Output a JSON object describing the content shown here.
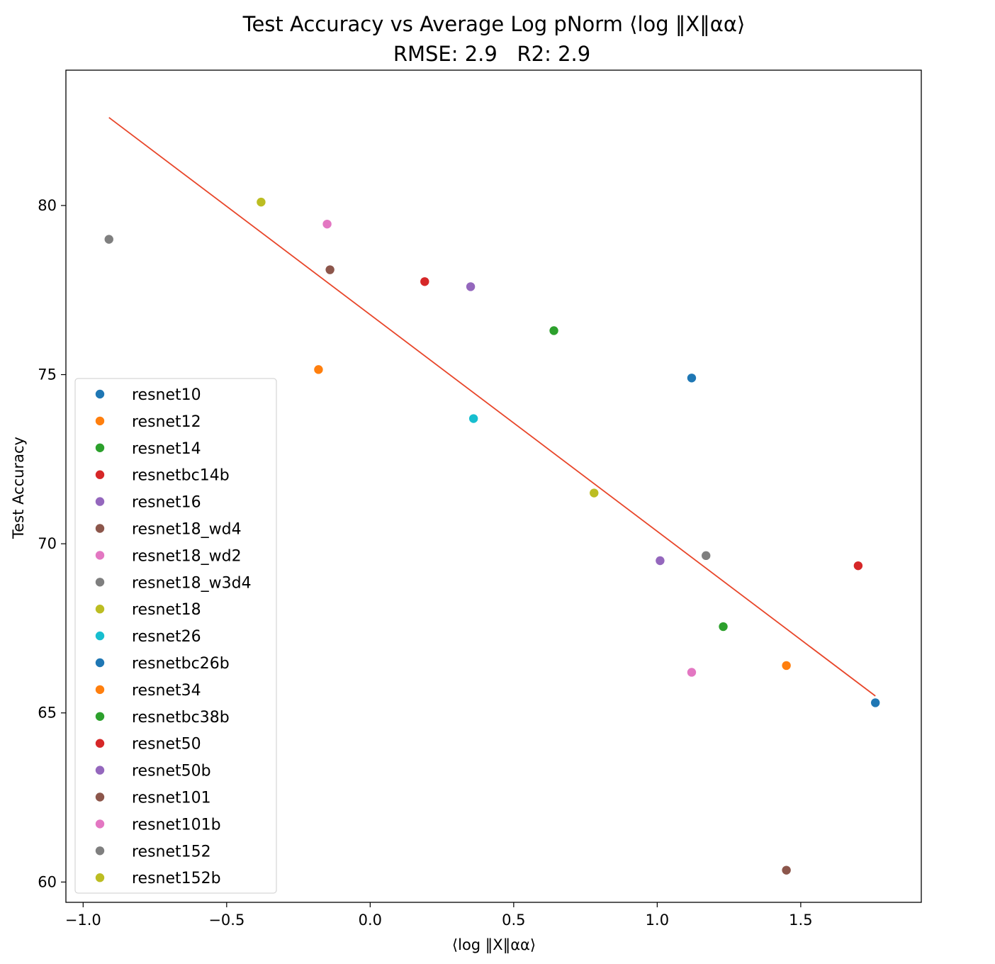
{
  "chart_data": {
    "type": "scatter",
    "title": "Test Accuracy vs Average Log pNorm",
    "title_math": "⟨log ‖X‖αα⟩",
    "subtitle": "RMSE: 2.9   R2: 2.9",
    "xlabel": "⟨log ‖X‖αα⟩",
    "ylabel": "Test Accuracy",
    "xlim": [
      -1.06,
      1.92
    ],
    "ylim": [
      59.4,
      84
    ],
    "xticks": [
      -1.0,
      -0.5,
      0.0,
      0.5,
      1.0,
      1.5
    ],
    "xtick_labels": [
      "−1.0",
      "−0.5",
      "0.0",
      "0.5",
      "1.0",
      "1.5"
    ],
    "yticks": [
      60,
      65,
      70,
      75,
      80
    ],
    "ytick_labels": [
      "60",
      "65",
      "70",
      "75",
      "80"
    ],
    "grid": false,
    "legend_position": "lower-left",
    "fit_line": {
      "color": "#e8462a",
      "x": [
        -0.91,
        1.76
      ],
      "y": [
        82.6,
        65.5
      ]
    },
    "series": [
      {
        "name": "resnet10",
        "color": "#1f77b4",
        "x": [
          1.12
        ],
        "y": [
          74.9
        ]
      },
      {
        "name": "resnet12",
        "color": "#ff7f0e",
        "x": [
          -0.18
        ],
        "y": [
          75.15
        ]
      },
      {
        "name": "resnet14",
        "color": "#2ca02c",
        "x": [
          0.64
        ],
        "y": [
          76.3
        ]
      },
      {
        "name": "resnetbc14b",
        "color": "#d62728",
        "x": [
          0.19
        ],
        "y": [
          77.75
        ]
      },
      {
        "name": "resnet16",
        "color": "#9467bd",
        "x": [
          0.35
        ],
        "y": [
          77.6
        ]
      },
      {
        "name": "resnet18_wd4",
        "color": "#8c564b",
        "x": [
          -0.14
        ],
        "y": [
          78.1
        ]
      },
      {
        "name": "resnet18_wd2",
        "color": "#e377c2",
        "x": [
          -0.15
        ],
        "y": [
          79.45
        ]
      },
      {
        "name": "resnet18_w3d4",
        "color": "#7f7f7f",
        "x": [
          -0.91
        ],
        "y": [
          79.0
        ]
      },
      {
        "name": "resnet18",
        "color": "#bcbd22",
        "x": [
          -0.38
        ],
        "y": [
          80.1
        ]
      },
      {
        "name": "resnet26",
        "color": "#17becf",
        "x": [
          0.36
        ],
        "y": [
          73.7
        ]
      },
      {
        "name": "resnetbc26b",
        "color": "#1f77b4",
        "x": [
          1.76
        ],
        "y": [
          65.3
        ]
      },
      {
        "name": "resnet34",
        "color": "#ff7f0e",
        "x": [
          1.45
        ],
        "y": [
          66.4
        ]
      },
      {
        "name": "resnetbc38b",
        "color": "#2ca02c",
        "x": [
          1.23
        ],
        "y": [
          67.55
        ]
      },
      {
        "name": "resnet50",
        "color": "#d62728",
        "x": [
          1.7
        ],
        "y": [
          69.35
        ]
      },
      {
        "name": "resnet50b",
        "color": "#9467bd",
        "x": [
          1.01
        ],
        "y": [
          69.5
        ]
      },
      {
        "name": "resnet101",
        "color": "#8c564b",
        "x": [
          1.45
        ],
        "y": [
          60.35
        ]
      },
      {
        "name": "resnet101b",
        "color": "#e377c2",
        "x": [
          1.12
        ],
        "y": [
          66.2
        ]
      },
      {
        "name": "resnet152",
        "color": "#7f7f7f",
        "x": [
          1.17
        ],
        "y": [
          69.65
        ]
      },
      {
        "name": "resnet152b",
        "color": "#bcbd22",
        "x": [
          0.78
        ],
        "y": [
          71.5
        ]
      }
    ]
  }
}
